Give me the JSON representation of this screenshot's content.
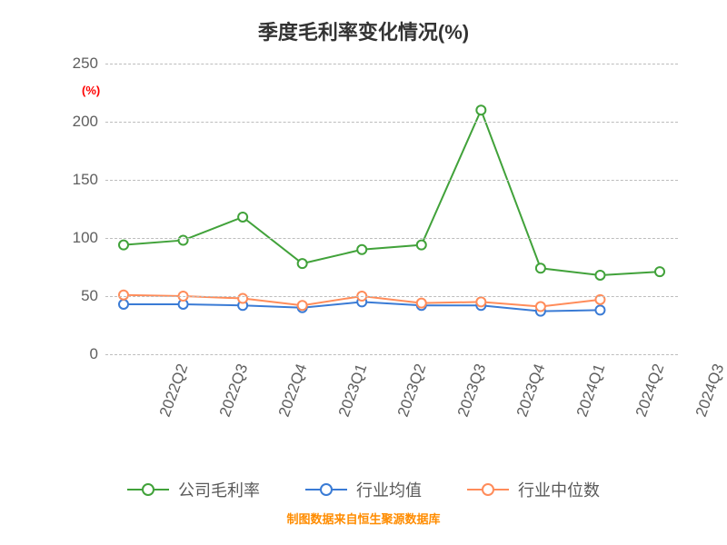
{
  "title": {
    "text": "季度毛利率变化情况(%)",
    "fontsize": 22,
    "color": "#333333"
  },
  "y_axis_unit": {
    "text": "(%)",
    "color": "#ff0000",
    "fontsize": 13,
    "left": 90,
    "top": 92
  },
  "source_note": {
    "text": "制图数据来自恒生聚源数据库",
    "color": "#ff8c00",
    "fontsize": 13
  },
  "chart": {
    "type": "line",
    "background_color": "#ffffff",
    "grid_color": "#bdbdbd",
    "grid_dash": true,
    "categories": [
      "2022Q2",
      "2022Q3",
      "2022Q4",
      "2023Q1",
      "2023Q2",
      "2023Q3",
      "2023Q4",
      "2024Q1",
      "2024Q2",
      "2024Q3"
    ],
    "ylim": [
      0,
      250
    ],
    "ytick_step": 50,
    "yticks": [
      0,
      50,
      100,
      150,
      200,
      250
    ],
    "xlabel_rotation_deg": -70,
    "xlabel_fontsize": 17,
    "ylabel_fontsize": 17,
    "tick_label_color": "#5f5f5f",
    "line_width": 2,
    "marker_style": "circle",
    "marker_size": 10,
    "marker_fill": "#ffffff",
    "marker_stroke_width": 2,
    "series": [
      {
        "name": "公司毛利率",
        "color": "#41a23a",
        "values": [
          94,
          98,
          118,
          78,
          90,
          94,
          210,
          74,
          68,
          71
        ],
        "extend_to": 9
      },
      {
        "name": "行业均值",
        "color": "#3a7bd5",
        "values": [
          43,
          43,
          42,
          40,
          45,
          42,
          42,
          37,
          38
        ],
        "extend_to": 8
      },
      {
        "name": "行业中位数",
        "color": "#ff8c5a",
        "values": [
          51,
          50,
          48,
          42,
          50,
          44,
          45,
          41,
          47
        ],
        "extend_to": 8
      }
    ],
    "legend": {
      "position": "bottom",
      "fontsize": 18,
      "label_color": "#5a5a5a"
    }
  }
}
